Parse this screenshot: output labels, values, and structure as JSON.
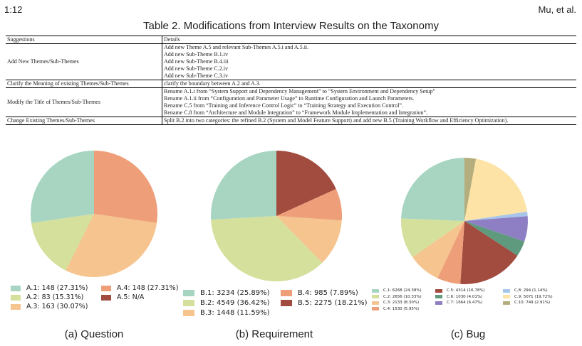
{
  "header": {
    "page": "1:12",
    "authors": "Mu, et al."
  },
  "table": {
    "caption": "Table 2.  Modifications from Interview Results on the Taxonomy",
    "col_suggestions": "Suggestions",
    "col_details": "Details",
    "rows": [
      {
        "suggestion": "Add New Themes/Sub-Themes",
        "details": [
          "Add new Theme A.5 and relevant Sub-Themes A.5.i and A.5.ii.",
          "Add new Sub-Theme B.1.iv",
          "Add new Sub-Theme B.4.iii",
          "Add new Sub-Theme C.2.iv",
          "Add new Sub-Theme C.3.iv"
        ]
      },
      {
        "suggestion": "Clarify the Meaning of existing Themes/Sub-Themes",
        "details": [
          "clarify the boundary between A.2 and A.3."
        ]
      },
      {
        "suggestion": "Modify the Title of Themes/Sub-Themes",
        "details": [
          "Rename A.1.i from “System Support and Dependency Management” to “System Environment and Dependency Setup”",
          "Rename A.1.ii from “Configuration and Parameter Usage” to Runtime Configuration and Launch Parameters.",
          "Rename C.5 from “Training and Inference Control Logic” to “Training Strategy and Execution Control”.",
          "Rename C.8 from “Architecture and Module Integration” to “Framework Module Implementation and Integration”."
        ]
      },
      {
        "suggestion": "Change Existing Themes/Sub-Themes",
        "details": [
          "Split B.2 into two categories: the refined B.2 (System and Model Feature Support) and add new B.5 (Training Workflow and Efficiency Optimization)."
        ]
      }
    ]
  },
  "chart_data": [
    {
      "type": "pie",
      "subcaption": "(a) Question",
      "slices": [
        {
          "label": "A.1: 148 (27.31%)",
          "value": 148,
          "color": "#a8d5c2"
        },
        {
          "label": "A.2: 83 (15.31%)",
          "value": 83,
          "color": "#d4e09b"
        },
        {
          "label": "A.3: 163 (30.07%)",
          "value": 163,
          "color": "#f6c48e"
        },
        {
          "label": "A.4: 148 (27.31%)",
          "value": 148,
          "color": "#ee9f7a"
        },
        {
          "label": "A.5: N/A",
          "value": 0,
          "color": "#a24b3f"
        }
      ],
      "pie_order": [
        3,
        2,
        1,
        0
      ]
    },
    {
      "type": "pie",
      "subcaption": "(b) Requirement",
      "slices": [
        {
          "label": "B.1: 3234 (25.89%)",
          "value": 3234,
          "color": "#a8d5c2"
        },
        {
          "label": "B.2: 4549 (36.42%)",
          "value": 4549,
          "color": "#d4e09b"
        },
        {
          "label": "B.3: 1448 (11.59%)",
          "value": 1448,
          "color": "#f6c48e"
        },
        {
          "label": "B.4: 985 (7.89%)",
          "value": 985,
          "color": "#ee9f7a"
        },
        {
          "label": "B.5: 2275 (18.21%)",
          "value": 2275,
          "color": "#a24b3f"
        }
      ],
      "pie_order": [
        4,
        3,
        2,
        1,
        0
      ]
    },
    {
      "type": "pie",
      "subcaption": "(c) Bug",
      "slices": [
        {
          "label": "C.1: 6268 (24.38%)",
          "value": 6268,
          "color": "#a8d5c2"
        },
        {
          "label": "C.2: 2656 (10.33%)",
          "value": 2656,
          "color": "#d4e09b"
        },
        {
          "label": "C.3: 2133 (8.30%)",
          "value": 2133,
          "color": "#f6c48e"
        },
        {
          "label": "C.4: 1530 (5.95%)",
          "value": 1530,
          "color": "#ee9f7a"
        },
        {
          "label": "C.5: 4314 (16.78%)",
          "value": 4314,
          "color": "#a24b3f"
        },
        {
          "label": "C.6: 1030 (4.01%)",
          "value": 1030,
          "color": "#5f9a7f"
        },
        {
          "label": "C.7: 1664 (6.47%)",
          "value": 1664,
          "color": "#8e7fc4"
        },
        {
          "label": "C.8: 294 (1.14%)",
          "value": 294,
          "color": "#a7c6ea"
        },
        {
          "label": "C.9: 5071 (19.72%)",
          "value": 5071,
          "color": "#fde3a6"
        },
        {
          "label": "C.10: 749 (2.91%)",
          "value": 749,
          "color": "#b4ae7e"
        }
      ],
      "pie_order": [
        9,
        8,
        7,
        6,
        5,
        4,
        3,
        2,
        1,
        0
      ]
    }
  ]
}
